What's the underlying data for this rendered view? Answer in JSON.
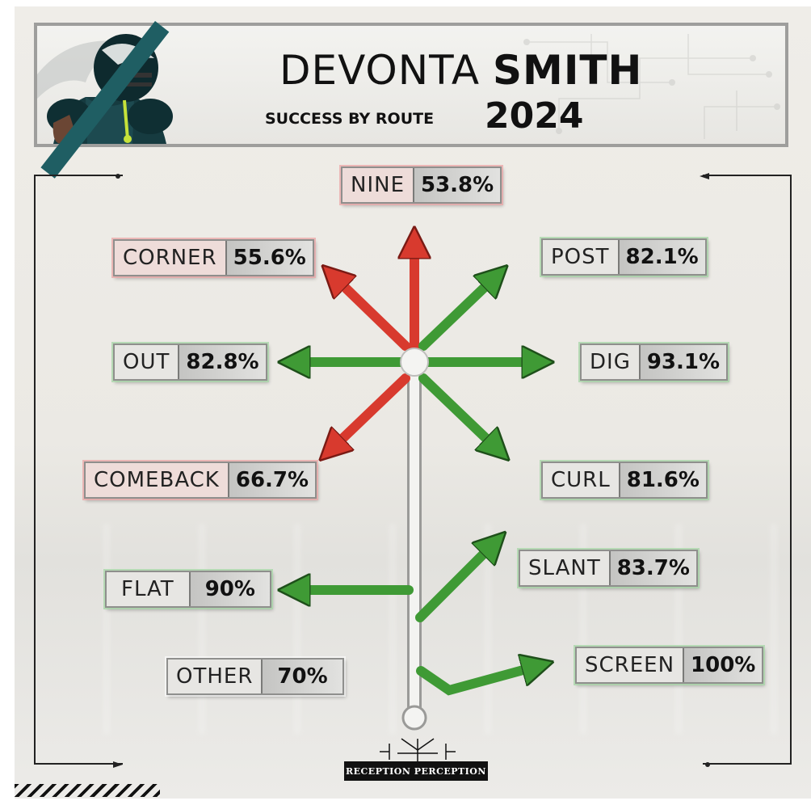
{
  "header": {
    "first_name": "DEVONTA",
    "last_name": "SMITH",
    "subtitle": "SUCCESS BY ROUTE",
    "year": "2024"
  },
  "routes": [
    {
      "label": "NINE",
      "value": "53.8%",
      "status": "red"
    },
    {
      "label": "CORNER",
      "value": "55.6%",
      "status": "red"
    },
    {
      "label": "POST",
      "value": "82.1%",
      "status": "green"
    },
    {
      "label": "OUT",
      "value": "82.8%",
      "status": "green"
    },
    {
      "label": "DIG",
      "value": "93.1%",
      "status": "green"
    },
    {
      "label": "COMEBACK",
      "value": "66.7%",
      "status": "red"
    },
    {
      "label": "CURL",
      "value": "81.6%",
      "status": "green"
    },
    {
      "label": "FLAT",
      "value": "90%",
      "status": "green"
    },
    {
      "label": "SLANT",
      "value": "83.7%",
      "status": "green"
    },
    {
      "label": "OTHER",
      "value": "70%",
      "status": "neutral"
    },
    {
      "label": "SCREEN",
      "value": "100%",
      "status": "green"
    }
  ],
  "colors": {
    "success_green": "#3f9a35",
    "low_red": "#d83a2e",
    "stem_gray": "#d9d9d7",
    "team_teal": "#1f5e63"
  },
  "logo": {
    "text": "RECEPTION PERCEPTION"
  }
}
